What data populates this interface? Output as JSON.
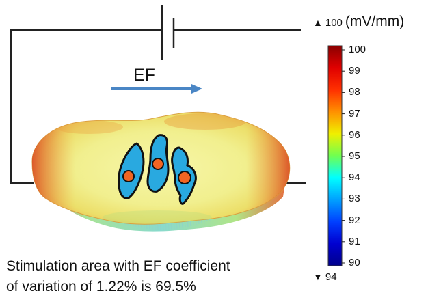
{
  "diagram": {
    "field_label": "EF",
    "field_unit": "(mV/mm)",
    "colorbar": {
      "max_marker": "100",
      "min_marker": "94",
      "ticks": [
        "100",
        "99",
        "98",
        "97",
        "96",
        "95",
        "94",
        "93",
        "92",
        "91",
        "90"
      ],
      "colors": {
        "100": "#8b0000",
        "98": "#ff3000",
        "97": "#ff9000",
        "96": "#f0f000",
        "95": "#70ff50",
        "94": "#00ffff",
        "92": "#0060ff",
        "90": "#00008b"
      }
    },
    "caption_line1": "Stimulation area with EF coefficient",
    "caption_line2": "of variation of 1.22% is 69.5%",
    "colors": {
      "wire": "#222222",
      "arrow": "#4a86c5",
      "cell_fill": "#29a9e0",
      "nucleus_fill": "#f26522",
      "surface_base": "#f3f29a"
    }
  }
}
